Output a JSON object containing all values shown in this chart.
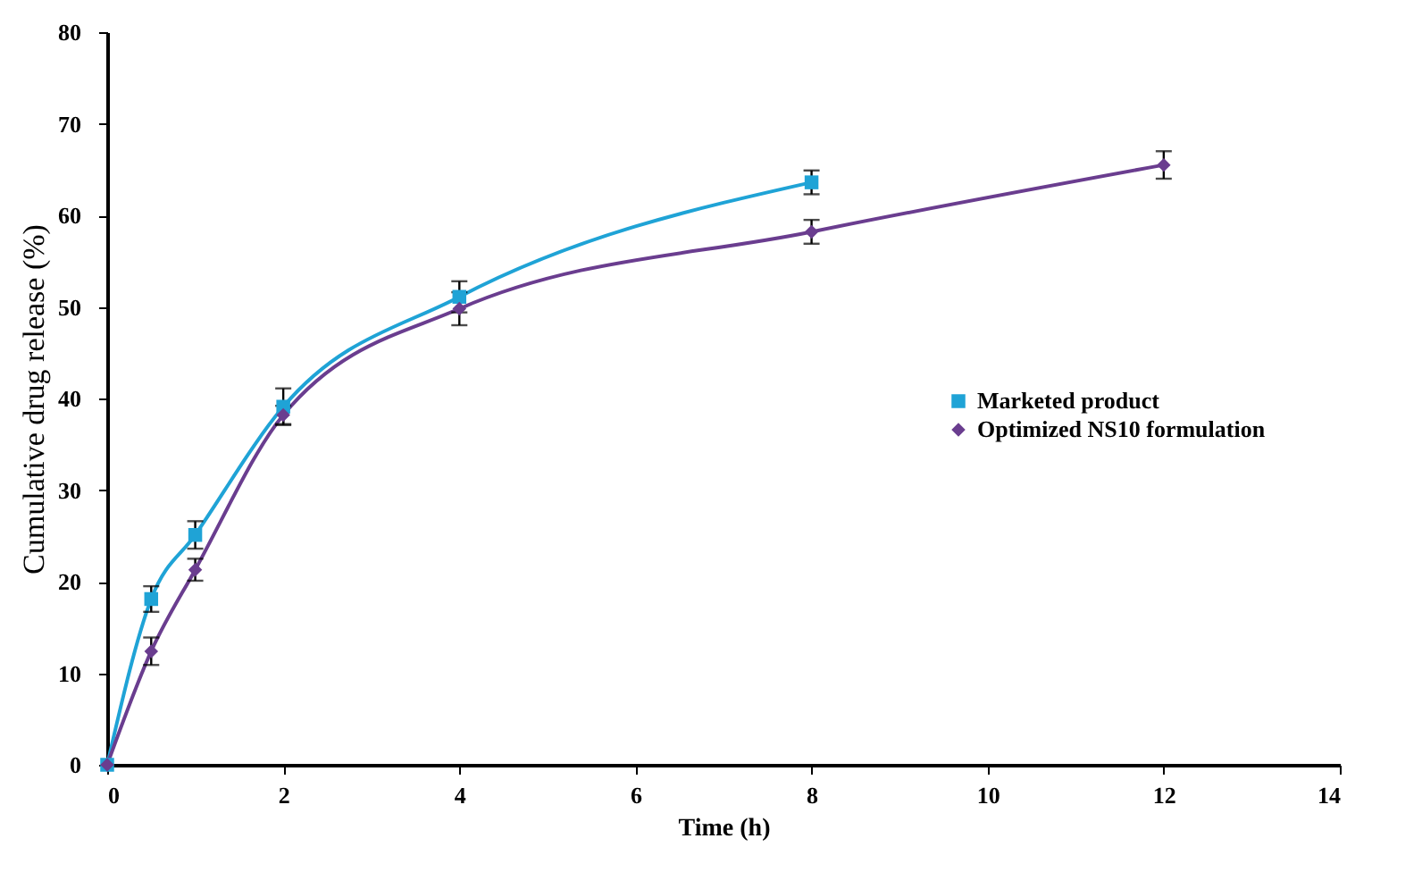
{
  "chart_data": {
    "type": "line",
    "xlabel": "Time (h)",
    "ylabel": "Cumulative drug release (%)",
    "x": [
      0,
      0.5,
      1,
      2,
      4,
      8,
      12
    ],
    "series": [
      {
        "name": "Marketed product",
        "color": "#1fa3d6",
        "marker": "square",
        "values": [
          0,
          18.1,
          25.1,
          39.1,
          51.1,
          63.6,
          null
        ],
        "errors": [
          null,
          1.4,
          1.5,
          2.0,
          1.7,
          1.3,
          null
        ]
      },
      {
        "name": "Optimized NS10 formulation",
        "color": "#6a3d8f",
        "marker": "diamond",
        "values": [
          0,
          12.4,
          21.3,
          38.2,
          49.8,
          58.2,
          65.5
        ],
        "errors": [
          null,
          1.5,
          1.2,
          1.0,
          1.8,
          1.3,
          1.5
        ]
      }
    ],
    "xlim": [
      0,
      14
    ],
    "xticks": [
      0,
      2,
      4,
      6,
      8,
      10,
      12,
      14
    ],
    "ylim": [
      0,
      80
    ],
    "yticks": [
      0,
      10,
      20,
      30,
      40,
      50,
      60,
      70,
      80
    ],
    "grid": false,
    "legend": "right",
    "line_style": "solid"
  }
}
